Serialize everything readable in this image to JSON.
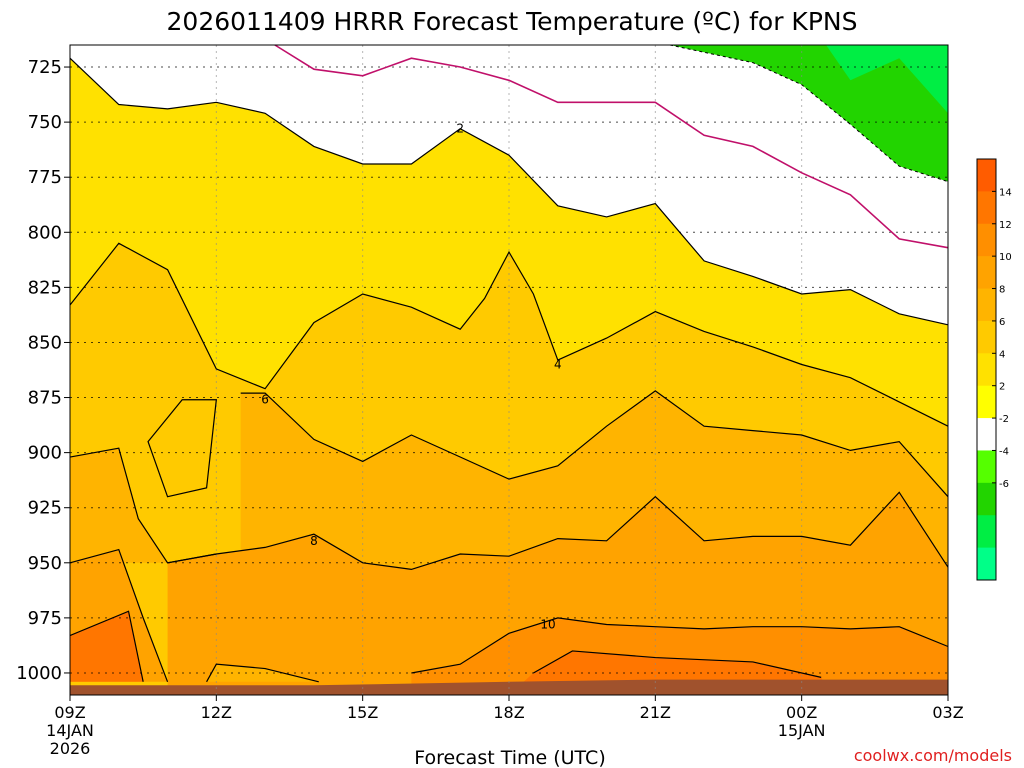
{
  "title": "2026011409 HRRR Forecast Temperature (ºC) for KPNS",
  "credit": "coolwx.com/models",
  "chart_data": {
    "type": "contour",
    "x_axis": {
      "label": "Forecast Time (UTC)",
      "start_hour": 9,
      "end_hour": 27,
      "ticks": [
        {
          "hour": 9,
          "label": "09Z",
          "line2": "14JAN",
          "line3": "2026"
        },
        {
          "hour": 12,
          "label": "12Z",
          "line2": "",
          "line3": ""
        },
        {
          "hour": 15,
          "label": "15Z",
          "line2": "",
          "line3": ""
        },
        {
          "hour": 18,
          "label": "18Z",
          "line2": "",
          "line3": ""
        },
        {
          "hour": 21,
          "label": "21Z",
          "line2": "",
          "line3": ""
        },
        {
          "hour": 24,
          "label": "00Z",
          "line2": "15JAN",
          "line3": ""
        },
        {
          "hour": 27,
          "label": "03Z",
          "line2": "",
          "line3": ""
        }
      ]
    },
    "y_axis": {
      "label": "",
      "range": [
        1010,
        715
      ],
      "ticks": [
        "725",
        "750",
        "775",
        "800",
        "825",
        "850",
        "875",
        "900",
        "925",
        "950",
        "975",
        "1000"
      ]
    },
    "colorbar": {
      "tick_labels": [
        "14",
        "12",
        "10",
        "8",
        "6",
        "4",
        "2",
        "-2",
        "-4",
        "-6"
      ],
      "colors": [
        "#ff5c00",
        "#ff7600",
        "#ff8f00",
        "#ffa300",
        "#ffb400",
        "#ffca00",
        "#ffe100",
        "#ffff00",
        "#ffffff",
        "#55ff00",
        "#22d400",
        "#00ee44",
        "#00ff88"
      ]
    },
    "contours": [
      {
        "level": 2,
        "label": "2",
        "at": [
          17.0,
          753
        ],
        "points": [
          [
            9,
            721
          ],
          [
            10,
            742
          ],
          [
            11,
            744
          ],
          [
            12,
            741
          ],
          [
            13,
            746
          ],
          [
            14,
            761
          ],
          [
            15,
            769
          ],
          [
            16,
            769
          ],
          [
            17,
            753
          ],
          [
            18,
            765
          ],
          [
            19,
            788
          ],
          [
            20,
            793
          ],
          [
            21,
            787
          ],
          [
            22,
            813
          ],
          [
            23,
            820
          ],
          [
            24,
            828
          ],
          [
            25,
            826
          ],
          [
            26,
            837
          ],
          [
            27,
            842
          ]
        ]
      },
      {
        "level": 4,
        "label": "4",
        "at": [
          19.0,
          860
        ],
        "points": [
          [
            9,
            833
          ],
          [
            10,
            805
          ],
          [
            11,
            817
          ],
          [
            12,
            862
          ],
          [
            13,
            871
          ],
          [
            14,
            841
          ],
          [
            15,
            828
          ],
          [
            16,
            834
          ],
          [
            17,
            844
          ],
          [
            17.5,
            830
          ],
          [
            18,
            809
          ],
          [
            18.5,
            828
          ],
          [
            19,
            858
          ],
          [
            20,
            848
          ],
          [
            21,
            836
          ],
          [
            22,
            845
          ],
          [
            23,
            852
          ],
          [
            24,
            860
          ],
          [
            25,
            866
          ],
          [
            26,
            877
          ],
          [
            27,
            888
          ]
        ]
      },
      {
        "level": 6,
        "label": "6",
        "at": [
          13.0,
          876
        ],
        "points": [
          [
            12.5,
            873
          ],
          [
            13,
            873
          ],
          [
            14,
            894
          ],
          [
            15,
            904
          ],
          [
            16,
            892
          ],
          [
            17,
            902
          ],
          [
            18,
            912
          ],
          [
            19,
            906
          ],
          [
            20,
            888
          ],
          [
            21,
            872
          ],
          [
            22,
            888
          ],
          [
            23,
            890
          ],
          [
            24,
            892
          ],
          [
            25,
            899
          ],
          [
            26,
            895
          ],
          [
            27,
            920
          ]
        ]
      },
      {
        "level": 8,
        "label": "8",
        "at": [
          14.0,
          940
        ],
        "points": [
          [
            11,
            950
          ],
          [
            12,
            946
          ],
          [
            13,
            943
          ],
          [
            14,
            937
          ],
          [
            15,
            950
          ],
          [
            16,
            953
          ],
          [
            17,
            946
          ],
          [
            18,
            947
          ],
          [
            19,
            939
          ],
          [
            20,
            940
          ],
          [
            21,
            920
          ],
          [
            22,
            940
          ],
          [
            23,
            938
          ],
          [
            24,
            938
          ],
          [
            25,
            942
          ],
          [
            26,
            918
          ],
          [
            27,
            952
          ]
        ]
      },
      {
        "level": 10,
        "label": "10",
        "at": [
          18.8,
          978
        ],
        "points": [
          [
            16,
            1000
          ],
          [
            17,
            996
          ],
          [
            18,
            982
          ],
          [
            19,
            975
          ],
          [
            20,
            978
          ],
          [
            21,
            979
          ],
          [
            22,
            980
          ],
          [
            23,
            979
          ],
          [
            24,
            979
          ],
          [
            25,
            980
          ],
          [
            26,
            979
          ],
          [
            27,
            988
          ]
        ]
      }
    ],
    "purple_isotherm_0": [
      [
        13.2,
        715
      ],
      [
        14,
        726
      ],
      [
        15,
        729
      ],
      [
        16,
        721
      ],
      [
        17,
        725
      ],
      [
        18,
        731
      ],
      [
        19,
        741
      ],
      [
        20,
        741
      ],
      [
        21,
        741
      ],
      [
        22,
        756
      ],
      [
        23,
        761
      ],
      [
        24,
        773
      ],
      [
        25,
        783
      ],
      [
        26,
        803
      ],
      [
        27,
        807
      ]
    ]
  }
}
